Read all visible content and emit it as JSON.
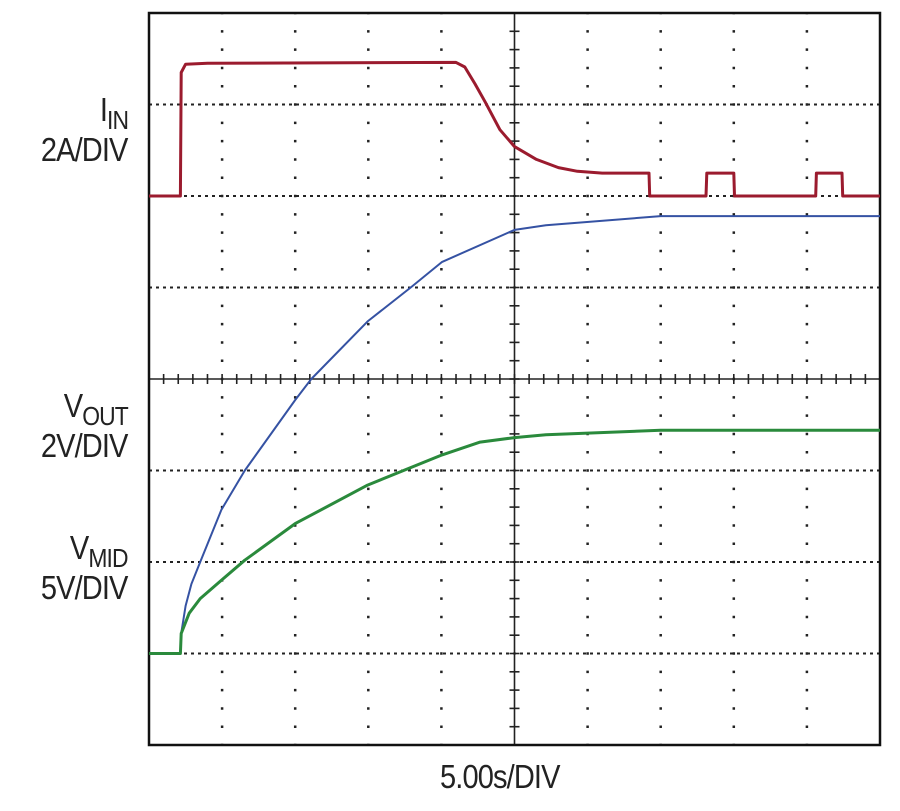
{
  "chart_data": {
    "type": "line",
    "title": "",
    "xlabel": "5.00s/DIV",
    "xlim": [
      0,
      50
    ],
    "x_unit": "s",
    "grid": true,
    "divisions": {
      "horizontal": 10,
      "vertical": 8
    },
    "series": [
      {
        "name": "IIN",
        "label": {
          "base": "I",
          "sub": "IN",
          "scale": "2A/DIV"
        },
        "unit": "A",
        "color": "#9b1b2e",
        "zero_division": 6,
        "volts_per_div": 2,
        "points": [
          [
            0,
            0
          ],
          [
            2.15,
            0
          ],
          [
            2.2,
            2.7
          ],
          [
            2.5,
            2.88
          ],
          [
            4,
            2.9
          ],
          [
            21,
            2.92
          ],
          [
            21.6,
            2.82
          ],
          [
            22.3,
            2.45
          ],
          [
            23,
            2.05
          ],
          [
            24,
            1.45
          ],
          [
            25,
            1.08
          ],
          [
            26.5,
            0.8
          ],
          [
            28,
            0.62
          ],
          [
            29.3,
            0.54
          ],
          [
            31,
            0.5
          ],
          [
            34.2,
            0.5
          ],
          [
            34.25,
            0
          ],
          [
            38.1,
            0
          ],
          [
            38.15,
            0.5
          ],
          [
            40,
            0.5
          ],
          [
            40.05,
            0
          ],
          [
            45.6,
            0
          ],
          [
            45.65,
            0.5
          ],
          [
            47.4,
            0.5
          ],
          [
            47.45,
            0
          ],
          [
            50,
            0
          ]
        ]
      },
      {
        "name": "VOUT",
        "label": {
          "base": "V",
          "sub": "OUT",
          "scale": "2V/DIV"
        },
        "unit": "V",
        "color": "#2a8a3c",
        "zero_division": 1,
        "volts_per_div": 2,
        "points": [
          [
            0,
            0
          ],
          [
            2.15,
            0
          ],
          [
            2.2,
            0.44
          ],
          [
            2.75,
            0.88
          ],
          [
            3.5,
            1.2
          ],
          [
            4.95,
            1.6
          ],
          [
            6.55,
            2.04
          ],
          [
            10,
            2.84
          ],
          [
            14.95,
            3.68
          ],
          [
            20.05,
            4.34
          ],
          [
            22.65,
            4.62
          ],
          [
            25,
            4.72
          ],
          [
            27.15,
            4.78
          ],
          [
            35,
            4.88
          ],
          [
            50,
            4.88
          ]
        ]
      },
      {
        "name": "VMID",
        "label": {
          "base": "V",
          "sub": "MID",
          "scale": "5V/DIV"
        },
        "unit": "V",
        "color": "#3552a3",
        "zero_division": 1,
        "volts_per_div": 5,
        "points": [
          [
            0,
            0
          ],
          [
            2.15,
            0
          ],
          [
            2.2,
            1.1
          ],
          [
            2.5,
            2.6
          ],
          [
            2.9,
            3.8
          ],
          [
            3.5,
            5.0
          ],
          [
            4.95,
            7.85
          ],
          [
            6.55,
            10
          ],
          [
            10,
            13.85
          ],
          [
            11.1,
            15
          ],
          [
            14.95,
            18.15
          ],
          [
            17.9,
            20
          ],
          [
            20.05,
            21.4
          ],
          [
            25,
            23.15
          ],
          [
            27.15,
            23.4
          ],
          [
            35,
            23.9
          ],
          [
            50,
            23.9
          ]
        ]
      }
    ]
  }
}
